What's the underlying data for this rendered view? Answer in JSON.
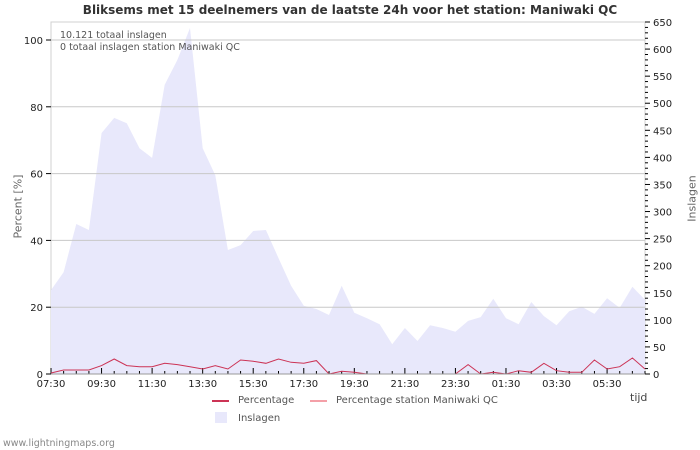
{
  "title": "Bliksems met 15 deelnemers van de laatste 24h voor het station: Maniwaki QC",
  "info": {
    "total": "10.121 totaal inslagen",
    "station_total": "0 totaal inslagen station Maniwaki QC"
  },
  "axes": {
    "left_label": "Percent   [%]",
    "right_label": "Inslagen",
    "x_label": "tijd"
  },
  "legend": {
    "percentage": "Percentage",
    "percentage_station": "Percentage station Maniwaki QC",
    "inslagen": "Inslagen"
  },
  "footer": "www.lightningmaps.org",
  "colors": {
    "area": "#e8e8fb",
    "percentage": "#cc3355",
    "percentage_station": "#f4a0a8",
    "grid": "#c8c8c8"
  },
  "chart_data": {
    "type": "area",
    "title": "Bliksems met 15 deelnemers van de laatste 24h voor het station: Maniwaki QC",
    "xlabel": "tijd",
    "ylabel_left": "Percent [%]",
    "ylabel_right": "Inslagen",
    "ylim_left": [
      0,
      100
    ],
    "ylim_right": [
      0,
      650
    ],
    "left_ticks": [
      0,
      20,
      40,
      60,
      80,
      100
    ],
    "right_ticks": [
      0,
      50,
      100,
      150,
      200,
      250,
      300,
      350,
      400,
      450,
      500,
      550,
      600,
      650
    ],
    "x_tick_labels": [
      "07:30",
      "09:30",
      "11:30",
      "13:30",
      "15:30",
      "17:30",
      "19:30",
      "21:30",
      "23:30",
      "01:30",
      "03:30",
      "05:30"
    ],
    "grid": true,
    "legend_position": "bottom",
    "x": [
      "07:30",
      "08:00",
      "08:30",
      "09:00",
      "09:30",
      "10:00",
      "10:30",
      "11:00",
      "11:30",
      "12:00",
      "12:30",
      "13:00",
      "13:30",
      "14:00",
      "14:30",
      "15:00",
      "15:30",
      "16:00",
      "16:30",
      "17:00",
      "17:30",
      "18:00",
      "18:30",
      "19:00",
      "19:30",
      "20:00",
      "20:30",
      "21:00",
      "21:30",
      "22:00",
      "22:30",
      "23:00",
      "23:30",
      "00:00",
      "00:30",
      "01:00",
      "01:30",
      "02:00",
      "02:30",
      "03:00",
      "03:30",
      "04:00",
      "04:30",
      "05:00",
      "05:30",
      "06:00",
      "06:30",
      "07:00"
    ],
    "series": [
      {
        "name": "Inslagen",
        "axis": "right",
        "type": "area",
        "values": [
          155,
          188,
          277,
          266,
          445,
          473,
          463,
          417,
          399,
          534,
          580,
          639,
          417,
          367,
          229,
          238,
          264,
          266,
          214,
          163,
          126,
          120,
          109,
          163,
          113,
          103,
          92,
          55,
          85,
          61,
          90,
          85,
          78,
          98,
          105,
          139,
          103,
          92,
          133,
          107,
          90,
          116,
          124,
          111,
          140,
          122,
          161,
          137
        ]
      },
      {
        "name": "Percentage",
        "axis": "left",
        "type": "line",
        "values": [
          0.3,
          1.2,
          1.2,
          1.2,
          2.5,
          4.5,
          2.5,
          2.2,
          2.2,
          3.2,
          2.8,
          2.2,
          1.5,
          2.5,
          1.5,
          4.2,
          3.8,
          3.2,
          4.5,
          3.5,
          3.2,
          4.0,
          0,
          0.8,
          0.5,
          0,
          0,
          0,
          0,
          0,
          0,
          0,
          0,
          2.8,
          0,
          0.5,
          0,
          1.0,
          0.5,
          3.2,
          1.0,
          0.5,
          0.5,
          4.2,
          1.5,
          2.2,
          4.8,
          1.5
        ]
      },
      {
        "name": "Percentage station Maniwaki QC",
        "axis": "left",
        "type": "line",
        "values": [
          0,
          0,
          0,
          0,
          0,
          0,
          0,
          0,
          0,
          0,
          0,
          0,
          0,
          0,
          0,
          0,
          0,
          0,
          0,
          0,
          0,
          0,
          0,
          0,
          0,
          0,
          0,
          0,
          0,
          0,
          0,
          0,
          0,
          0,
          0,
          0,
          0,
          0,
          0,
          0,
          0,
          0,
          0,
          0,
          0,
          0,
          0,
          0
        ]
      }
    ]
  }
}
